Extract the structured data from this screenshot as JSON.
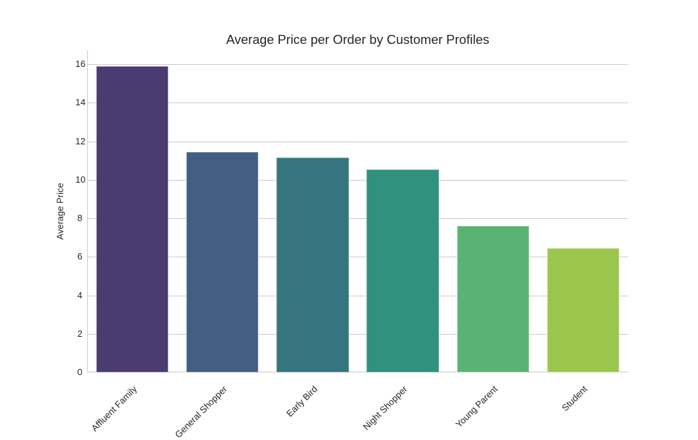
{
  "title": "Average Price per Order by Customer Profiles",
  "xlabel": "",
  "ylabel": "Average Price",
  "yticks": [
    "0",
    "2",
    "4",
    "6",
    "8",
    "10",
    "12",
    "14",
    "16"
  ],
  "colors": {
    "background": "#ffffff",
    "grid": "#cccccc",
    "text": "#262626"
  },
  "chart_data": {
    "type": "bar",
    "title": "Average Price per Order by Customer Profiles",
    "xlabel": "",
    "ylabel": "Average Price",
    "categories": [
      "Affluent Family",
      "General Shopper",
      "Early Bird",
      "Night Shopper",
      "Young Parent",
      "Student"
    ],
    "values": [
      15.9,
      11.45,
      11.15,
      10.55,
      7.6,
      6.45
    ],
    "colors": [
      "#4a3b70",
      "#425e80",
      "#35757f",
      "#30917d",
      "#5ab273",
      "#9bc64d"
    ],
    "ylim": [
      0,
      16.8
    ],
    "grid": true,
    "legend": null
  }
}
